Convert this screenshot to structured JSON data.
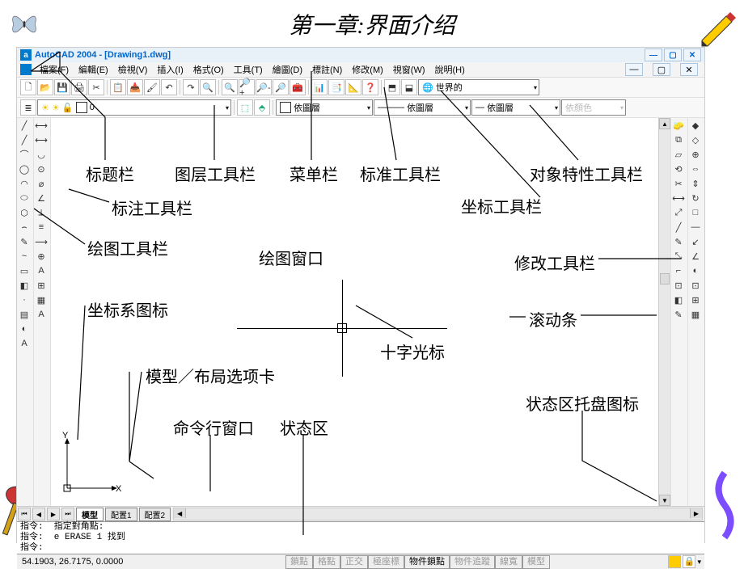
{
  "title": "第一章:界面介绍",
  "app": {
    "title": "AutoCAD 2004 - [Drawing1.dwg]",
    "menus": [
      "檔案(F)",
      "編輯(E)",
      "檢視(V)",
      "插入(I)",
      "格式(O)",
      "工具(T)",
      "繪圖(D)",
      "標註(N)",
      "修改(M)",
      "視窗(W)",
      "說明(H)"
    ],
    "std_icons": [
      "🗋",
      "📂",
      "💾",
      "🖨",
      "✂",
      "📋",
      "📥",
      "🖌",
      "↶",
      "↷",
      "🔍",
      "🔍",
      "🔎+",
      "🔎-",
      "🔎",
      "🧰",
      "📊",
      "📑",
      "📐",
      "❓"
    ],
    "ucs_icons": [
      "⬒",
      "⬓"
    ],
    "world_dropdown": "世界的",
    "layer_current": "0",
    "layer_color": "#ffffff",
    "bylayer_text": "依圖層",
    "bylayer_color_disabled": "依顏色",
    "linetype_sample": "———",
    "draw_tools_left": [
      "╱",
      "╱",
      "⌒",
      "◯",
      "◠",
      "⬭",
      "⬡",
      "⌢",
      "✎",
      "~",
      "▭",
      "◧",
      "·",
      "▤",
      "◐",
      "A"
    ],
    "dim_tools_left2": [
      "⟷",
      "⟷",
      "◡",
      "⊙",
      "⌀",
      "∠",
      "⟂",
      "≡",
      "⟶",
      "⊕",
      "A",
      "⊞",
      "▦",
      "A"
    ],
    "modify_tools_right": [
      "🧽",
      "⧉",
      "▱",
      "⟲",
      "✂",
      "⟷",
      "⤢",
      "╱",
      "✎",
      "⤡",
      "⌐",
      "⊡",
      "◧",
      "✎"
    ],
    "modify_tools_right2": [
      "◆",
      "◇",
      "⊕",
      "⇔",
      "⇕",
      "↻",
      "□",
      "—",
      "↙",
      "∠",
      "◐",
      "⊡",
      "⊞",
      "▦"
    ],
    "tabs": {
      "model": "模型",
      "layout1": "配置1",
      "layout2": "配置2"
    },
    "cmd": {
      "line1": "指令:  指定對角點:",
      "line2": "指令:  e ERASE 1 找到",
      "line3": "指令:"
    },
    "status": {
      "coords": "54.1903, 26.7175, 0.0000",
      "buttons": [
        "鎖點",
        "格點",
        "正交",
        "極座標",
        "物件鎖點",
        "物件追蹤",
        "線寬",
        "模型"
      ]
    },
    "ucs_labels": {
      "x": "X",
      "y": "Y"
    }
  },
  "annotations": {
    "titlebar": "标题栏",
    "layer_toolbar": "图层工具栏",
    "menubar": "菜单栏",
    "std_toolbar": "标准工具栏",
    "prop_toolbar": "对象特性工具栏",
    "dim_toolbar": "标注工具栏",
    "coord_toolbar": "坐标工具栏",
    "draw_toolbar": "绘图工具栏",
    "draw_window": "绘图窗口",
    "modify_toolbar": "修改工具栏",
    "ucs_icon": "坐标系图标",
    "scrollbar": "滚动条",
    "crosshair": "十字光标",
    "model_tabs": "模型／布局选项卡",
    "cmdline": "命令行窗口",
    "status_zone": "状态区",
    "status_tray": "状态区托盘图标"
  },
  "layout": {
    "canvas_bg": "#ffffff",
    "line_color": "#000000",
    "accent_blue": "#007acc",
    "anno_fontsize": 20
  }
}
